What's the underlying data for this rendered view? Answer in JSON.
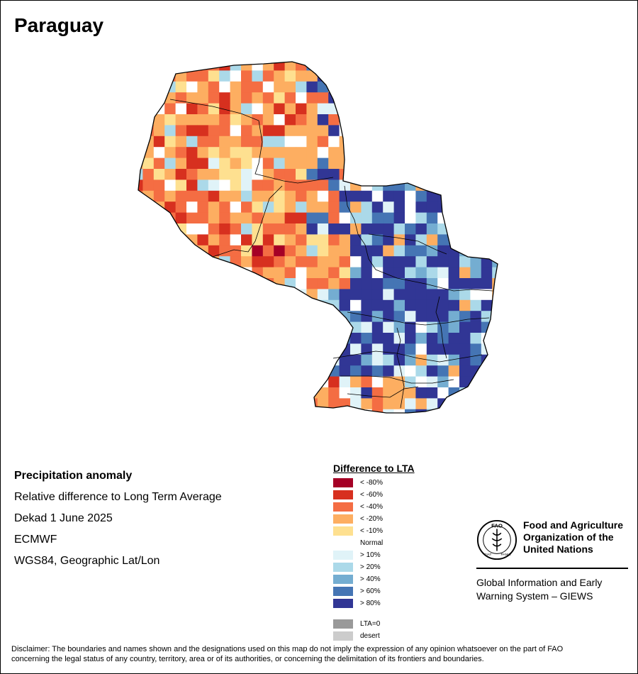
{
  "map": {
    "title": "Paraguay"
  },
  "info": {
    "heading": "Precipitation anomaly",
    "line1": "Relative difference to Long Term Average",
    "line2": "Dekad 1 June 2025",
    "line3": "ECMWF",
    "line4": "WGS84, Geographic Lat/Lon"
  },
  "legend": {
    "title": "Difference to LTA",
    "classes": [
      {
        "label": "< -80%",
        "color": "#a50026"
      },
      {
        "label": "< -60%",
        "color": "#d7301f"
      },
      {
        "label": "< -40%",
        "color": "#f46d43"
      },
      {
        "label": "< -20%",
        "color": "#fdae61"
      },
      {
        "label": "< -10%",
        "color": "#fee090"
      },
      {
        "label": "Normal",
        "color": "#ffffff"
      },
      {
        "label": "> 10%",
        "color": "#e0f3f8"
      },
      {
        "label": "> 20%",
        "color": "#abd9e9"
      },
      {
        "label": "> 40%",
        "color": "#74add1"
      },
      {
        "label": "> 60%",
        "color": "#4575b4"
      },
      {
        "label": "> 80%",
        "color": "#313695"
      }
    ],
    "extra": [
      {
        "label": "LTA=0",
        "color": "#999999"
      },
      {
        "label": "desert",
        "color": "#cccccc"
      }
    ]
  },
  "org": {
    "name_line1": "Food and Agriculture",
    "name_line2": "Organization of the",
    "name_line3": "United Nations",
    "logo_text": "FAO",
    "logo_ring_left": "FIAT",
    "logo_ring_right": "PANIS",
    "system_line1": "Global Information and Early",
    "system_line2": "Warning System – GIEWS"
  },
  "disclaimer": {
    "line1": "Disclaimer: The boundaries and names shown and the designations used on this map do not imply the expression of any opinion whatsoever on the part of FAO",
    "line2": "concerning the legal status of any country, territory, area or of its authorities, or concerning the delimitation of its frontiers and boundaries."
  }
}
